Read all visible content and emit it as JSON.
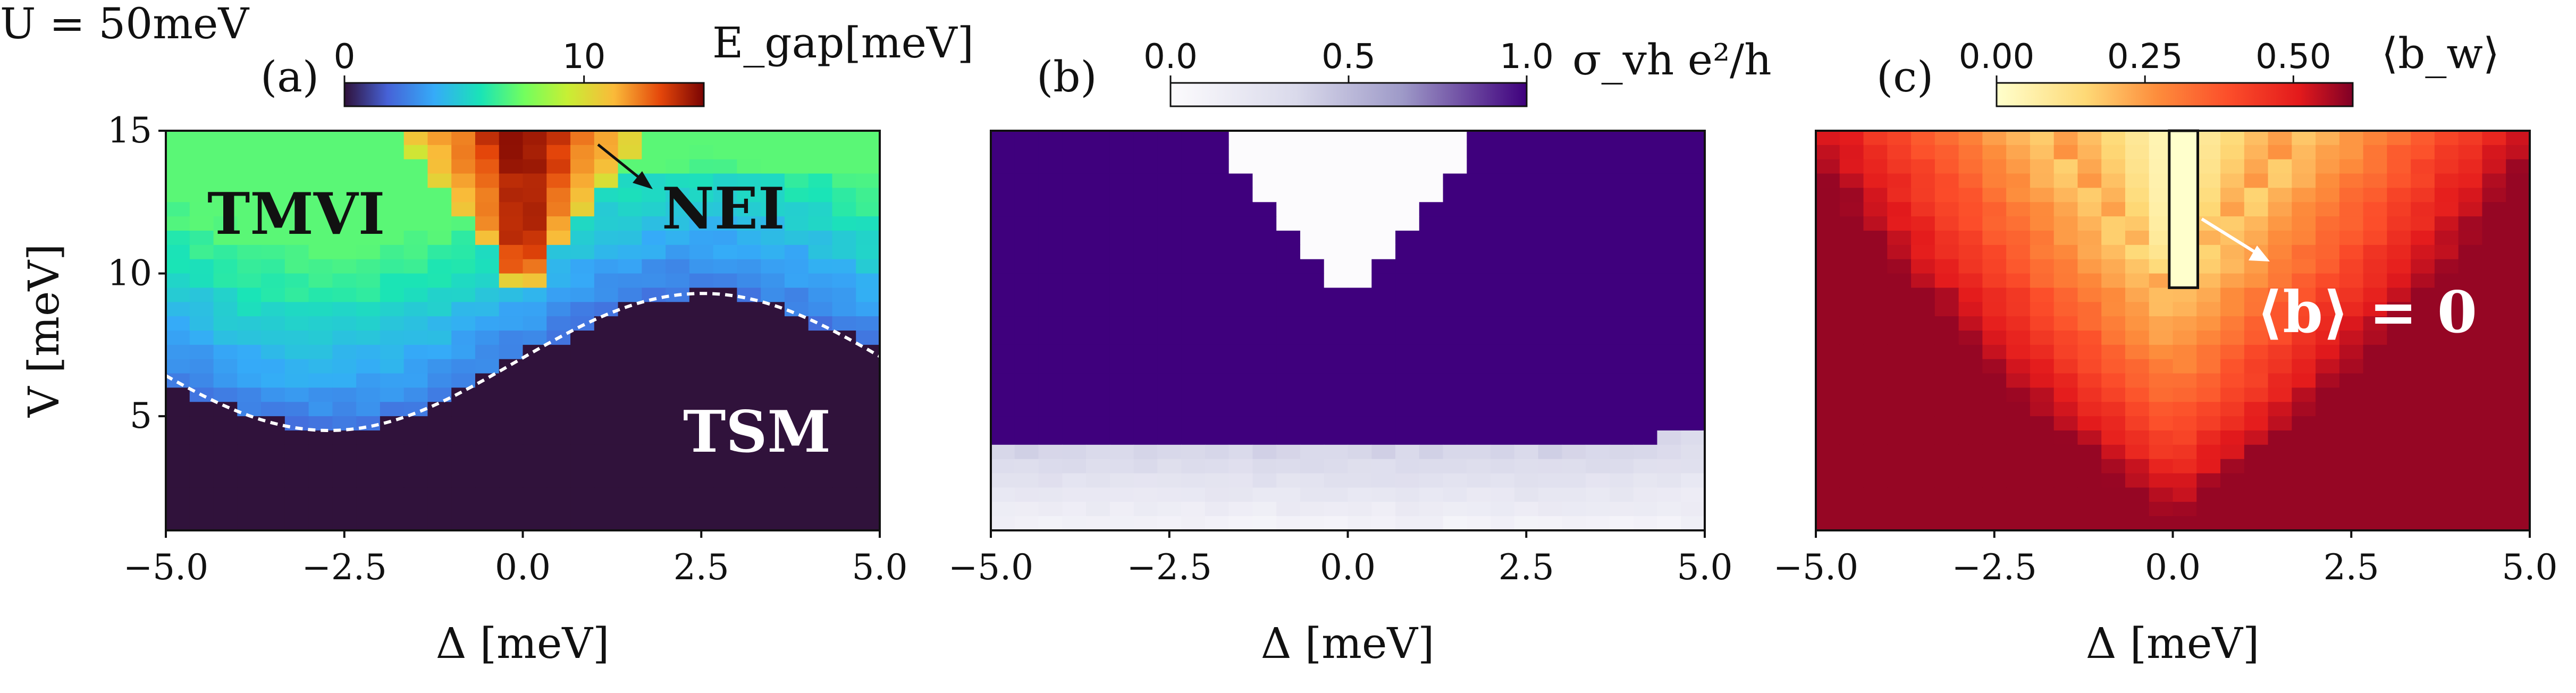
{
  "header": {
    "label": "U = 50meV"
  },
  "chart_data": [
    {
      "panel": "(a)",
      "type": "heatmap",
      "xlabel": "Δ [meV]",
      "ylabel": "V [meV]",
      "xlim": [
        -5,
        5
      ],
      "ylim": [
        1,
        15
      ],
      "xticks": [
        "−5.0",
        "−2.5",
        "0.0",
        "2.5",
        "5.0"
      ],
      "yticks": [
        "5",
        "10",
        "15"
      ],
      "colorbar": {
        "label": "E_gap[meV]",
        "ticks": [
          "0",
          "10"
        ],
        "range": [
          0,
          15
        ],
        "colormap": "turbo"
      },
      "annotations": [
        "TMVI",
        "NEI",
        "TSM"
      ],
      "boundary_curve": "dashed white: V ≈ 6.9 + 2.4·sin(0.6(Δ+0.1)) ; minimum ≈ 4.4 at Δ ≈ −2.5",
      "description": "Gap is large (≈10–15 meV) in a V-shaped NEI wedge centered at Δ=0 for V ≳ 9.5, ≈4–7 meV in the TMVI region, and 0 below the dashed boundary (TSM)."
    },
    {
      "panel": "(b)",
      "type": "heatmap",
      "xlabel": "Δ [meV]",
      "xlim": [
        -5,
        5
      ],
      "ylim": [
        1,
        15
      ],
      "xticks": [
        "−5.0",
        "−2.5",
        "0.0",
        "2.5",
        "5.0"
      ],
      "colorbar": {
        "label": "σ_vh e²/h",
        "ticks": [
          "0.0",
          "0.5",
          "1.0"
        ],
        "range": [
          0,
          1
        ],
        "colormap": "white-purple"
      },
      "description": "σ_vh ≈ 1 in the TMVI region, 0 inside the NEI wedge (Δ≈0, V ≳ 9.5) and ≈0.05–0.4 in the TSM region."
    },
    {
      "panel": "(c)",
      "type": "heatmap",
      "xlabel": "Δ [meV]",
      "xlim": [
        -5,
        5
      ],
      "ylim": [
        1,
        15
      ],
      "xticks": [
        "−5.0",
        "−2.5",
        "0.0",
        "2.5",
        "5.0"
      ],
      "colorbar": {
        "label": "⟨b_w⟩",
        "ticks": [
          "0.00",
          "0.25",
          "0.50"
        ],
        "range": [
          0,
          0.6
        ],
        "colormap": "YlOrRd"
      },
      "annotations": [
        "⟨b⟩ = 0"
      ],
      "description": "⟨b_w⟩ ≈ 0.4–0.55 across most of the map, dropping toward 0 near the Δ≈0 wedge; the outlined column Δ≈0, V≥9.5 has ⟨b⟩=0."
    }
  ]
}
